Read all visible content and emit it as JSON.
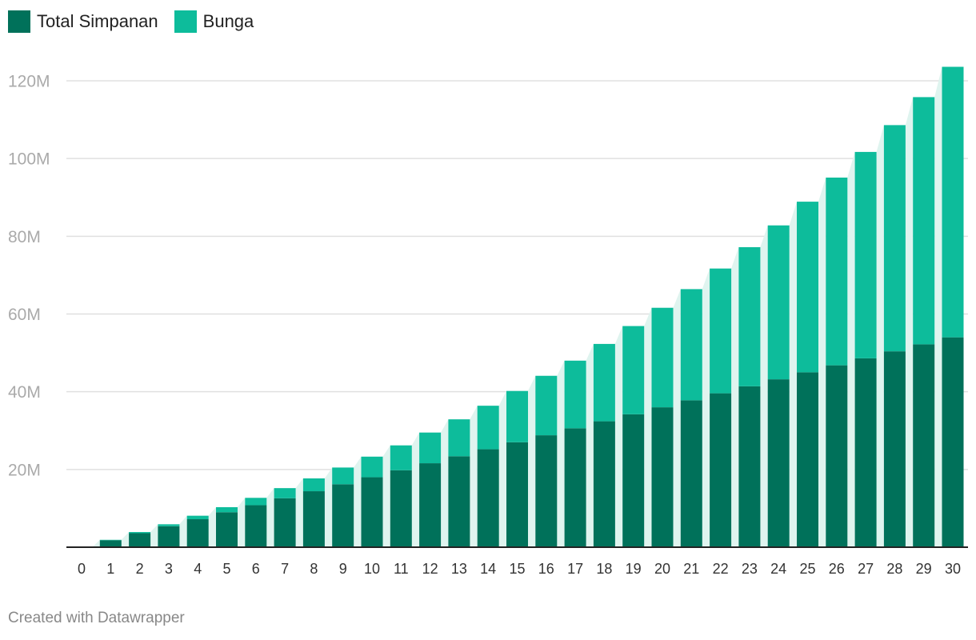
{
  "colors": {
    "total_simpanan": "#00715a",
    "bunga": "#0dbc9b",
    "band": "#dff4ef",
    "grid": "#e0e0e0",
    "tick_text": "#aaaaaa",
    "x_text": "#333333"
  },
  "legend": [
    {
      "label": "Total Simpanan",
      "color": "#00715a"
    },
    {
      "label": "Bunga",
      "color": "#0dbc9b"
    }
  ],
  "footer": "Created with Datawrapper",
  "chart_data": {
    "type": "bar",
    "stacked": true,
    "categories": [
      "0",
      "1",
      "2",
      "3",
      "4",
      "5",
      "6",
      "7",
      "8",
      "9",
      "10",
      "11",
      "12",
      "13",
      "14",
      "15",
      "16",
      "17",
      "18",
      "19",
      "20",
      "21",
      "22",
      "23",
      "24",
      "25",
      "26",
      "27",
      "28",
      "29",
      "30"
    ],
    "series": [
      {
        "name": "Total Simpanan",
        "values": [
          0,
          1.8,
          3.6,
          5.4,
          7.2,
          9.0,
          10.8,
          12.6,
          14.4,
          16.2,
          18.0,
          19.8,
          21.6,
          23.4,
          25.2,
          27.0,
          28.8,
          30.6,
          32.4,
          34.2,
          36.0,
          37.8,
          39.6,
          41.4,
          43.2,
          45.0,
          46.8,
          48.6,
          50.4,
          52.2,
          54.0
        ]
      },
      {
        "name": "Bunga",
        "values": [
          0,
          0.1,
          0.3,
          0.5,
          0.9,
          1.3,
          1.9,
          2.6,
          3.3,
          4.3,
          5.3,
          6.4,
          7.9,
          9.5,
          11.2,
          13.2,
          15.3,
          17.4,
          19.9,
          22.7,
          25.6,
          28.6,
          32.1,
          35.8,
          39.6,
          43.9,
          48.3,
          53.1,
          58.2,
          63.6,
          69.6
        ]
      }
    ],
    "y_ticks": [
      20,
      40,
      60,
      80,
      100,
      120
    ],
    "y_tick_labels": [
      "20M",
      "40M",
      "60M",
      "80M",
      "100M",
      "120M"
    ],
    "ylim": [
      0,
      125
    ],
    "y_unit": "M",
    "grid": true,
    "legend_position": "top-left"
  }
}
